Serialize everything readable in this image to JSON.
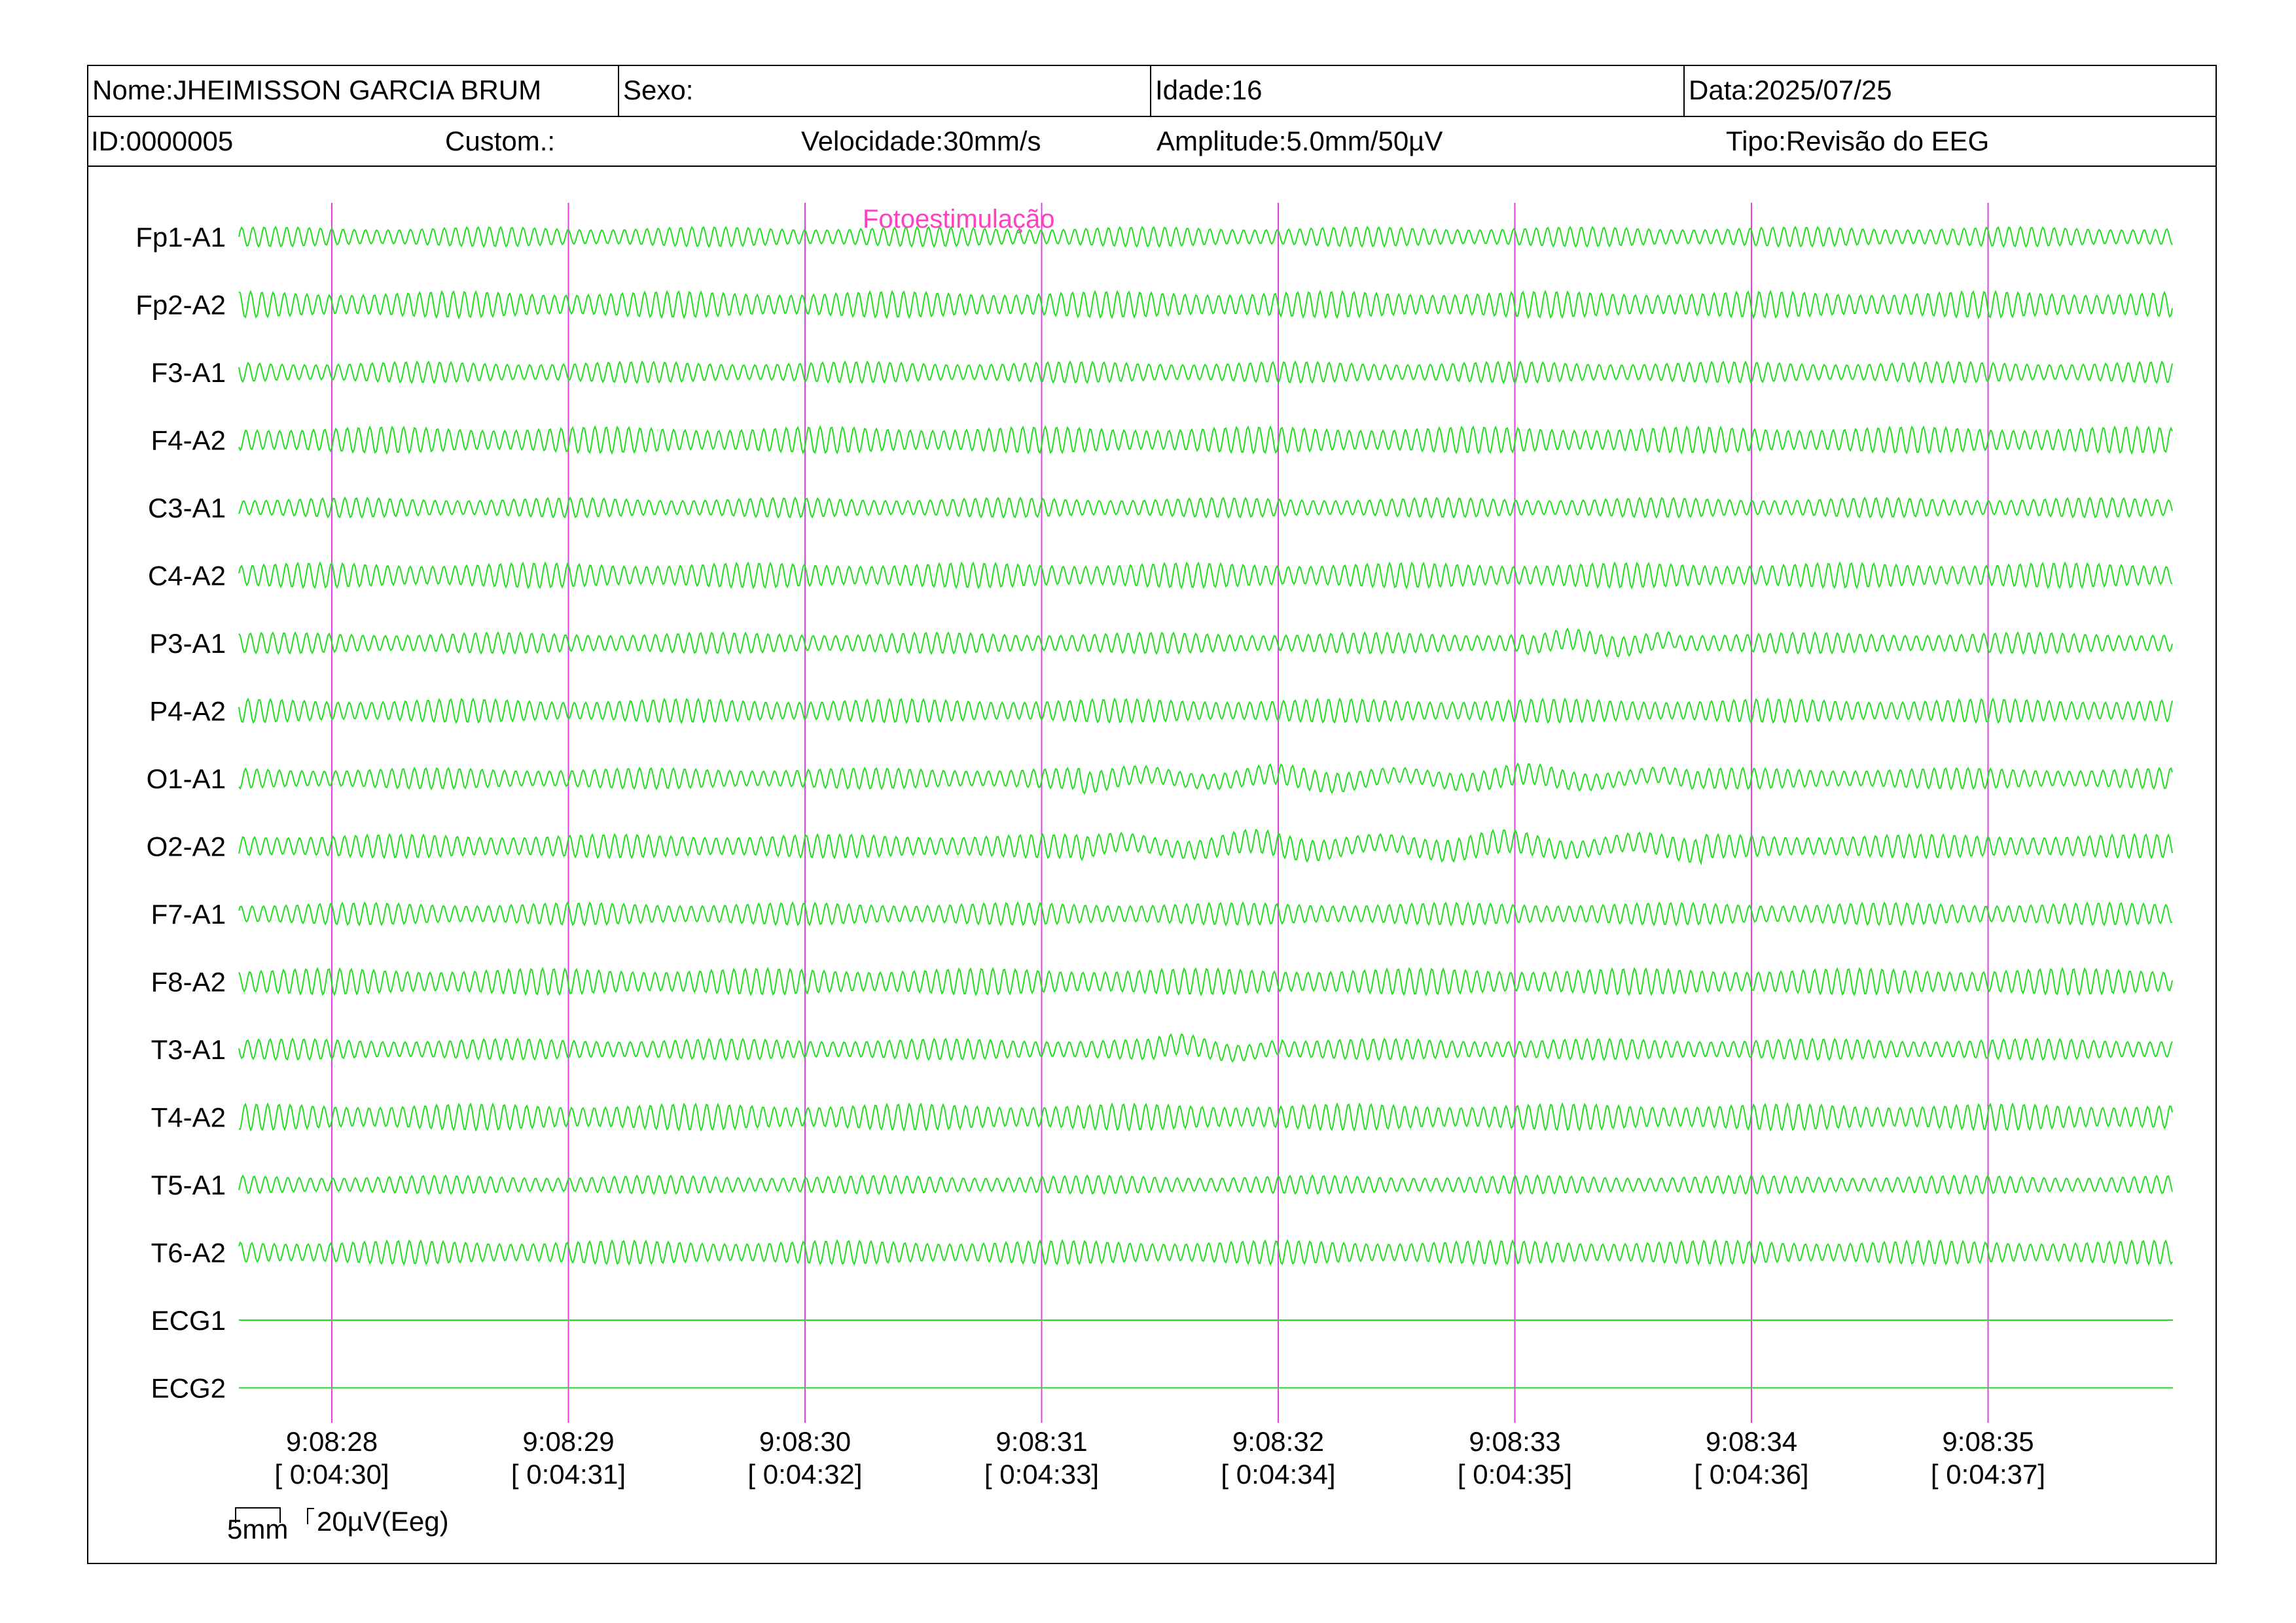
{
  "header": {
    "name": "Nome:JHEIMISSON GARCIA BRUM",
    "sex": "Sexo:",
    "age": "Idade:16",
    "date": "Data:2025/07/25",
    "id": "ID:0000005",
    "custom": "Custom.:",
    "speed": "Velocidade:30mm/s",
    "amplitude": "Amplitude:5.0mm/50µV",
    "type": "Tipo:Revisão do EEG"
  },
  "annotation": "Fotoestimulação",
  "channels": [
    {
      "label": "Fp1-A1",
      "kind": "eeg",
      "amp": 0.75
    },
    {
      "label": "Fp2-A2",
      "kind": "eeg",
      "amp": 1.0
    },
    {
      "label": "F3-A1",
      "kind": "eeg",
      "amp": 0.8
    },
    {
      "label": "F4-A2",
      "kind": "eeg",
      "amp": 1.0
    },
    {
      "label": "C3-A1",
      "kind": "eeg",
      "amp": 0.75
    },
    {
      "label": "C4-A2",
      "kind": "eeg",
      "amp": 0.95
    },
    {
      "label": "P3-A1",
      "kind": "eeg",
      "amp": 0.8
    },
    {
      "label": "P4-A2",
      "kind": "eeg",
      "amp": 0.9
    },
    {
      "label": "O1-A1",
      "kind": "eeg",
      "amp": 0.8
    },
    {
      "label": "O2-A2",
      "kind": "eeg",
      "amp": 0.9
    },
    {
      "label": "F7-A1",
      "kind": "eeg",
      "amp": 0.85
    },
    {
      "label": "F8-A2",
      "kind": "eeg",
      "amp": 1.0
    },
    {
      "label": "T3-A1",
      "kind": "eeg",
      "amp": 0.8
    },
    {
      "label": "T4-A2",
      "kind": "eeg",
      "amp": 1.0
    },
    {
      "label": "T5-A1",
      "kind": "eeg",
      "amp": 0.7
    },
    {
      "label": "T6-A2",
      "kind": "eeg",
      "amp": 0.9
    },
    {
      "label": "ECG1",
      "kind": "flat",
      "amp": 0
    },
    {
      "label": "ECG2",
      "kind": "flat",
      "amp": 0
    }
  ],
  "time_markers": [
    {
      "clock": "9:08:28",
      "elapsed": "[ 0:04:30]"
    },
    {
      "clock": "9:08:29",
      "elapsed": "[ 0:04:31]"
    },
    {
      "clock": "9:08:30",
      "elapsed": "[ 0:04:32]"
    },
    {
      "clock": "9:08:31",
      "elapsed": "[ 0:04:33]"
    },
    {
      "clock": "9:08:32",
      "elapsed": "[ 0:04:34]"
    },
    {
      "clock": "9:08:33",
      "elapsed": "[ 0:04:35]"
    },
    {
      "clock": "9:08:34",
      "elapsed": "[ 0:04:36]"
    },
    {
      "clock": "9:08:35",
      "elapsed": "[ 0:04:37]"
    }
  ],
  "scale": {
    "time_label": "5mm",
    "amp_label": "20µV(Eeg)"
  },
  "colors": {
    "trace": "#22dd22",
    "marker": "#e040e0",
    "annotation": "#ff40c0"
  }
}
